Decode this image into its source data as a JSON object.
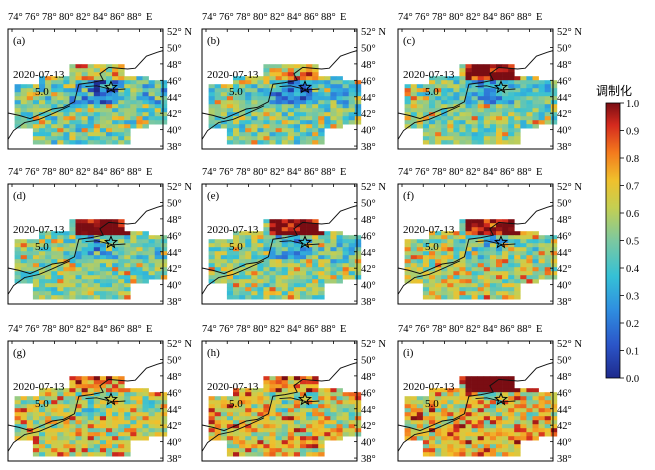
{
  "chart_data": {
    "type": "heatmap",
    "colorbar": {
      "title": "调制化",
      "ticks": [
        "1.0",
        "0.9",
        "0.8",
        "0.7",
        "0.6",
        "0.5",
        "0.4",
        "0.3",
        "0.2",
        "0.1",
        "0.0"
      ],
      "range": [
        0.0,
        1.0
      ]
    },
    "lon_ticks": [
      "74°",
      "76°",
      "78°",
      "80°",
      "82°",
      "84°",
      "86°",
      "88°",
      "E"
    ],
    "lat_ticks": [
      "52° N",
      "50°",
      "48°",
      "46°",
      "44°",
      "42°",
      "40°",
      "38°"
    ],
    "date_label": "2020-07-13",
    "magnitude_label": "5.0",
    "epicenter": {
      "lon": 83.3,
      "lat": 44.7
    },
    "panels": [
      {
        "label": "(a)",
        "bias": 0.0,
        "hot_north": 0.15,
        "cold_center": 0.35,
        "yellow_patches": 0.25
      },
      {
        "label": "(b)",
        "bias": 0.02,
        "hot_north": 0.2,
        "cold_center": 0.35,
        "yellow_patches": 0.2
      },
      {
        "label": "(c)",
        "bias": 0.05,
        "hot_north": 0.55,
        "cold_center": 0.3,
        "yellow_patches": 0.15
      },
      {
        "label": "(d)",
        "bias": 0.05,
        "hot_north": 0.6,
        "cold_center": 0.25,
        "yellow_patches": 0.15
      },
      {
        "label": "(e)",
        "bias": 0.06,
        "hot_north": 0.6,
        "cold_center": 0.22,
        "yellow_patches": 0.18
      },
      {
        "label": "(f)",
        "bias": 0.1,
        "hot_north": 0.35,
        "cold_center": 0.2,
        "yellow_patches": 0.3
      },
      {
        "label": "(g)",
        "bias": 0.12,
        "hot_north": 0.15,
        "cold_center": 0.15,
        "yellow_patches": 0.35
      },
      {
        "label": "(h)",
        "bias": 0.15,
        "hot_north": 0.12,
        "cold_center": 0.12,
        "yellow_patches": 0.4
      },
      {
        "label": "(i)",
        "bias": 0.18,
        "hot_north": 0.5,
        "cold_center": 0.08,
        "yellow_patches": 0.35
      }
    ]
  }
}
